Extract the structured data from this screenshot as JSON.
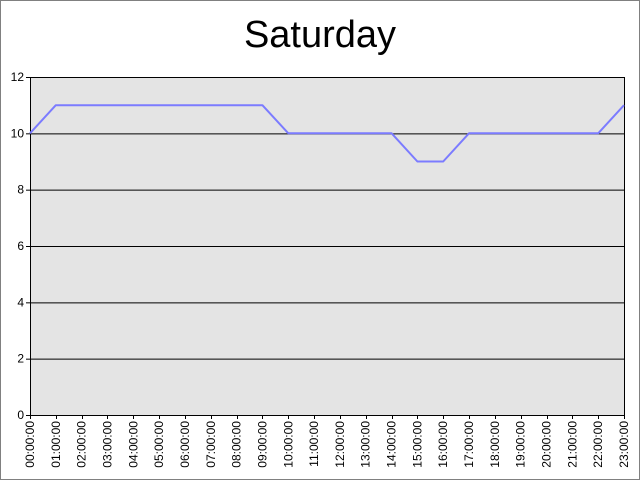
{
  "chart_data": {
    "type": "line",
    "title": "Saturday",
    "xlabel": "",
    "ylabel": "",
    "categories": [
      "00:00:00",
      "01:00:00",
      "02:00:00",
      "03:00:00",
      "04:00:00",
      "05:00:00",
      "06:00:00",
      "07:00:00",
      "08:00:00",
      "09:00:00",
      "10:00:00",
      "11:00:00",
      "12:00:00",
      "13:00:00",
      "14:00:00",
      "15:00:00",
      "16:00:00",
      "17:00:00",
      "18:00:00",
      "19:00:00",
      "20:00:00",
      "21:00:00",
      "22:00:00",
      "23:00:00"
    ],
    "series": [
      {
        "values": [
          10,
          11,
          11,
          11,
          11,
          11,
          11,
          11,
          11,
          11,
          10,
          10,
          10,
          10,
          10,
          9,
          9,
          10,
          10,
          10,
          10,
          10,
          10,
          11
        ],
        "color": "#7b7bff"
      }
    ],
    "ylim": [
      0,
      12
    ],
    "yticks": [
      0,
      2,
      4,
      6,
      8,
      10,
      12
    ],
    "grid": true,
    "legend": "none",
    "colors": {
      "plot_background": "#e4e4e4",
      "gridline": "#000000",
      "line": "#7b7bff"
    }
  }
}
